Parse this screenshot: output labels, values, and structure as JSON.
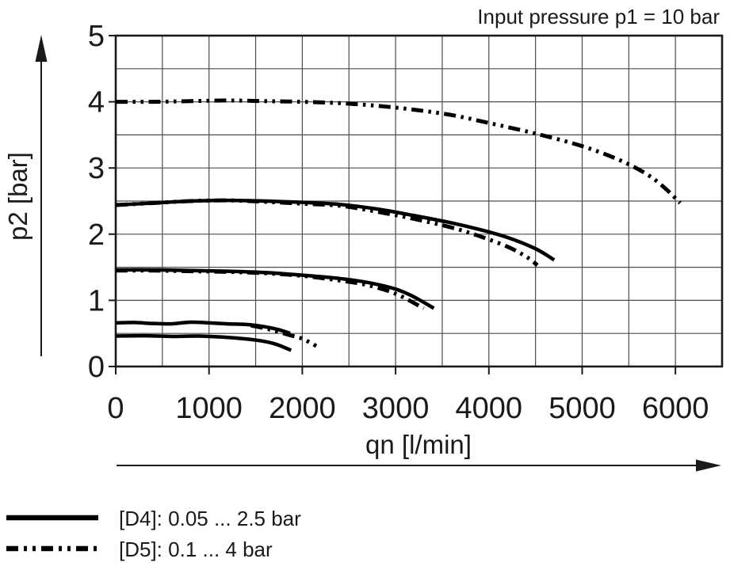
{
  "title": "Input pressure p1 = 10 bar",
  "colors": {
    "curve": "#000000",
    "grid": "#4d4d4d",
    "frame": "#1a1a1a",
    "text": "#1a1a1a",
    "background": "#ffffff"
  },
  "axes": {
    "x": {
      "label": "qn [l/min]",
      "tick_values": [
        0,
        1000,
        2000,
        3000,
        4000,
        5000,
        6000
      ],
      "min": 0,
      "max": 6500,
      "grid_step": 500
    },
    "y": {
      "label": "p2 [bar]",
      "tick_values": [
        0,
        1,
        2,
        3,
        4,
        5
      ],
      "min": 0,
      "max": 5,
      "grid_step": 0.5
    }
  },
  "legend": [
    {
      "style": "solid",
      "label": "[D4]: 0.05 ... 2.5 bar"
    },
    {
      "style": "dashdotdot",
      "label": "[D5]: 0.1 ... 4 bar"
    }
  ],
  "chart_data": {
    "type": "line",
    "title": "Input pressure p1 = 10 bar",
    "xlabel": "qn [l/min]",
    "ylabel": "p2 [bar]",
    "xlim": [
      0,
      6500
    ],
    "ylim": [
      0,
      5
    ],
    "grid": true,
    "grid_step_x": 500,
    "grid_step_y": 0.5,
    "legend_position": "bottom-left",
    "series": [
      {
        "name": "D5-setting-4bar",
        "legend": "[D5]: 0.1 ... 4 bar",
        "style": "dashdotdot",
        "points": [
          [
            0,
            4.0
          ],
          [
            400,
            4.0
          ],
          [
            800,
            4.01
          ],
          [
            1200,
            4.02
          ],
          [
            1600,
            4.01
          ],
          [
            2000,
            4.0
          ],
          [
            2400,
            3.98
          ],
          [
            2800,
            3.94
          ],
          [
            3200,
            3.88
          ],
          [
            3600,
            3.8
          ],
          [
            4000,
            3.68
          ],
          [
            4500,
            3.52
          ],
          [
            5000,
            3.33
          ],
          [
            5400,
            3.12
          ],
          [
            5700,
            2.9
          ],
          [
            5900,
            2.68
          ],
          [
            6050,
            2.47
          ]
        ]
      },
      {
        "name": "D4-setting-2.5bar",
        "legend": "[D4]: 0.05 ... 2.5 bar",
        "style": "solid",
        "points": [
          [
            0,
            2.44
          ],
          [
            400,
            2.47
          ],
          [
            800,
            2.5
          ],
          [
            1200,
            2.51
          ],
          [
            1600,
            2.5
          ],
          [
            2000,
            2.48
          ],
          [
            2400,
            2.45
          ],
          [
            2800,
            2.38
          ],
          [
            3200,
            2.28
          ],
          [
            3600,
            2.17
          ],
          [
            3900,
            2.07
          ],
          [
            4200,
            1.95
          ],
          [
            4500,
            1.78
          ],
          [
            4700,
            1.61
          ]
        ]
      },
      {
        "name": "D5-setting-2.5bar",
        "legend": "[D5]: 0.1 ... 4 bar",
        "style": "dashdotdot",
        "points": [
          [
            0,
            2.44
          ],
          [
            400,
            2.47
          ],
          [
            800,
            2.5
          ],
          [
            1200,
            2.51
          ],
          [
            1600,
            2.49
          ],
          [
            2000,
            2.46
          ],
          [
            2400,
            2.43
          ],
          [
            2800,
            2.34
          ],
          [
            3200,
            2.23
          ],
          [
            3600,
            2.1
          ],
          [
            3900,
            1.97
          ],
          [
            4200,
            1.81
          ],
          [
            4400,
            1.66
          ],
          [
            4520,
            1.53
          ]
        ]
      },
      {
        "name": "D4-setting-1.5bar",
        "legend": "[D4]: 0.05 ... 2.5 bar",
        "style": "solid",
        "points": [
          [
            0,
            1.46
          ],
          [
            400,
            1.46
          ],
          [
            800,
            1.45
          ],
          [
            1200,
            1.44
          ],
          [
            1600,
            1.42
          ],
          [
            2000,
            1.38
          ],
          [
            2400,
            1.33
          ],
          [
            2700,
            1.27
          ],
          [
            3000,
            1.17
          ],
          [
            3200,
            1.05
          ],
          [
            3410,
            0.88
          ]
        ]
      },
      {
        "name": "D5-setting-1.5bar",
        "legend": "[D5]: 0.1 ... 4 bar",
        "style": "dashdotdot",
        "points": [
          [
            0,
            1.45
          ],
          [
            400,
            1.45
          ],
          [
            800,
            1.44
          ],
          [
            1200,
            1.43
          ],
          [
            1600,
            1.41
          ],
          [
            2000,
            1.37
          ],
          [
            2400,
            1.3
          ],
          [
            2700,
            1.23
          ],
          [
            3000,
            1.1
          ],
          [
            3300,
            0.88
          ]
        ]
      },
      {
        "name": "D4-setting-0.65bar",
        "legend": "[D4]: 0.05 ... 2.5 bar",
        "style": "solid",
        "points": [
          [
            0,
            0.66
          ],
          [
            200,
            0.665
          ],
          [
            400,
            0.65
          ],
          [
            600,
            0.645
          ],
          [
            800,
            0.67
          ],
          [
            1000,
            0.66
          ],
          [
            1200,
            0.645
          ],
          [
            1400,
            0.635
          ],
          [
            1600,
            0.6
          ],
          [
            1750,
            0.555
          ],
          [
            1870,
            0.5
          ]
        ]
      },
      {
        "name": "D5-setting-0.5bar",
        "legend": "[D5]: 0.1 ... 4 bar",
        "style": "dashdotdot",
        "points": [
          [
            1450,
            0.62
          ],
          [
            1650,
            0.56
          ],
          [
            1850,
            0.48
          ],
          [
            2000,
            0.42
          ],
          [
            2150,
            0.31
          ]
        ]
      },
      {
        "name": "D4-setting-0.45bar",
        "legend": "[D4]: 0.05 ... 2.5 bar",
        "style": "solid",
        "points": [
          [
            0,
            0.46
          ],
          [
            300,
            0.465
          ],
          [
            600,
            0.455
          ],
          [
            900,
            0.46
          ],
          [
            1200,
            0.44
          ],
          [
            1500,
            0.4
          ],
          [
            1700,
            0.345
          ],
          [
            1880,
            0.245
          ]
        ]
      }
    ]
  }
}
